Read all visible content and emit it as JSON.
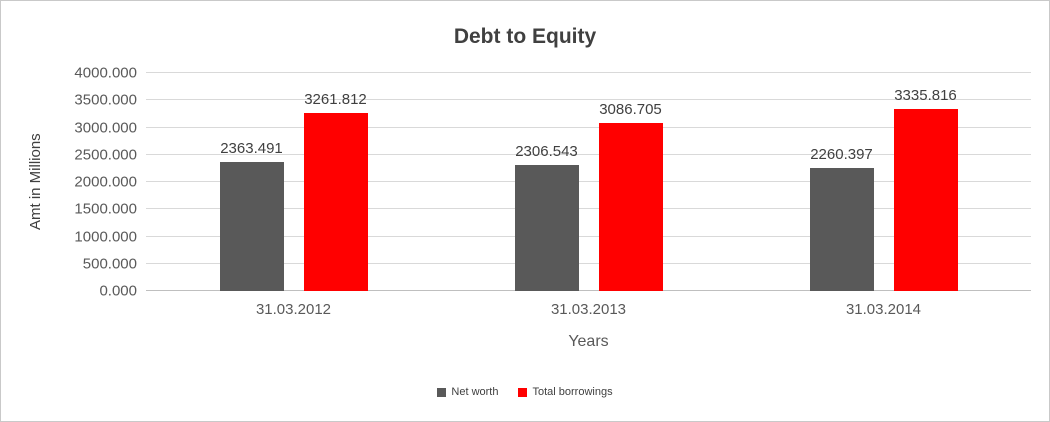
{
  "chart_data": {
    "type": "bar",
    "title": "Debt to Equity",
    "xlabel": "Years",
    "ylabel": "Amt in Millions",
    "categories": [
      "31.03.2012",
      "31.03.2013",
      "31.03.2014"
    ],
    "series": [
      {
        "name": "Net worth",
        "color": "#595959",
        "values": [
          2363.491,
          2306.543,
          2260.397
        ]
      },
      {
        "name": "Total borrowings",
        "color": "#ff0000",
        "values": [
          3261.812,
          3086.705,
          3335.816
        ]
      }
    ],
    "ylim": [
      0,
      4000
    ],
    "y_ticks": [
      "0.000",
      "500.000",
      "1000.000",
      "1500.000",
      "2000.000",
      "2500.000",
      "3000.000",
      "3500.000",
      "4000.000"
    ],
    "value_decimals": 3,
    "grid": true,
    "legend_position": "bottom"
  }
}
